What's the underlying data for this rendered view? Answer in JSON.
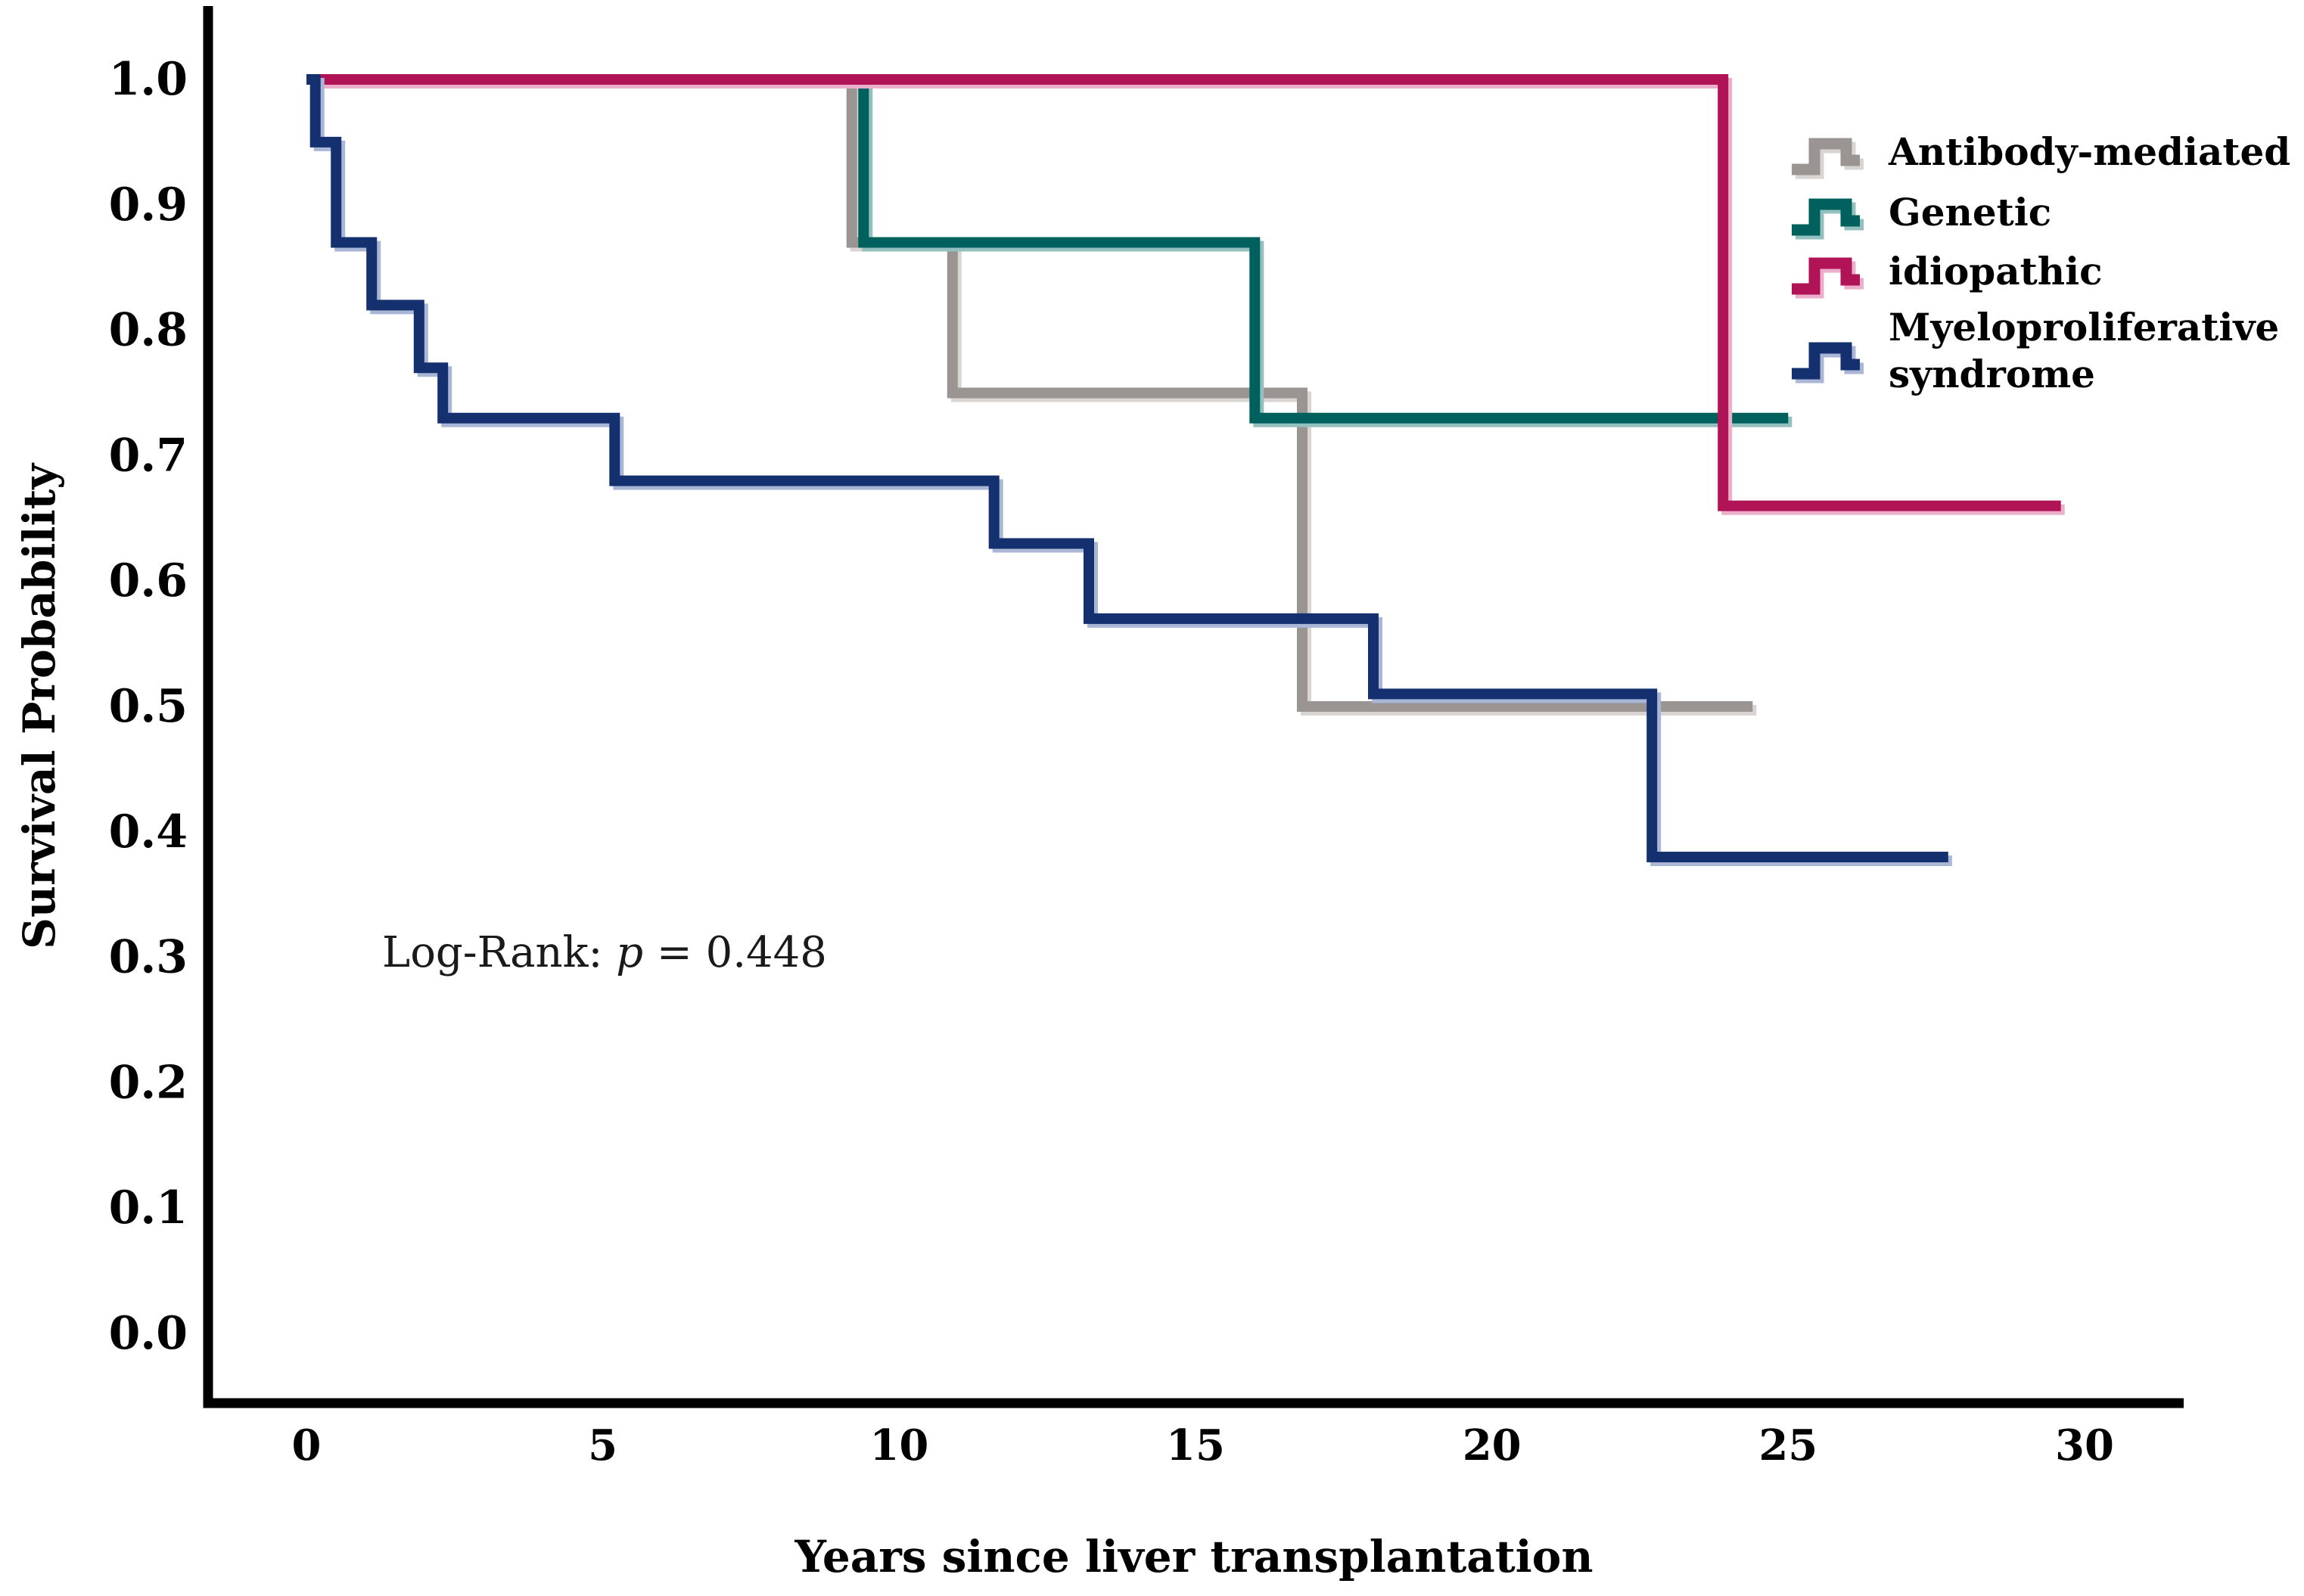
{
  "chart_data": {
    "type": "line",
    "subtype": "kaplan-meier-step",
    "title": "",
    "xlabel": "Years since liver transplantation",
    "ylabel": "Survival Probability",
    "x_ticks": [
      0,
      5,
      10,
      15,
      20,
      25,
      30
    ],
    "y_ticks": [
      "0.0",
      "0.1",
      "0.2",
      "0.3",
      "0.4",
      "0.5",
      "0.6",
      "0.7",
      "0.8",
      "0.9",
      "1.0"
    ],
    "xlim": [
      0,
      31.7
    ],
    "ylim": [
      0.0,
      1.06
    ],
    "grid": false,
    "legend_position": "upper-right-inside",
    "annotation": {
      "text": "Log-Rank: p = 0.448",
      "prefix": "Log-Rank: ",
      "p_symbol": "p",
      "suffix": " = 0.448"
    },
    "series": [
      {
        "name": "Antibody-mediated",
        "color": "#9A9593",
        "halo": "#D8D5D3",
        "points": [
          [
            0,
            1.0
          ],
          [
            9.2,
            1.0
          ],
          [
            9.2,
            0.87
          ],
          [
            10.9,
            0.87
          ],
          [
            10.9,
            0.75
          ],
          [
            16.8,
            0.75
          ],
          [
            16.8,
            0.5
          ],
          [
            24.4,
            0.5
          ]
        ]
      },
      {
        "name": "Genetic",
        "color": "#00605E",
        "halo": "#93C0BE",
        "points": [
          [
            0,
            1.0
          ],
          [
            9.4,
            1.0
          ],
          [
            9.4,
            0.87
          ],
          [
            16.0,
            0.87
          ],
          [
            16.0,
            0.73
          ],
          [
            25.0,
            0.73
          ]
        ]
      },
      {
        "name": "idiopathic",
        "color": "#B01457",
        "halo": "#EBAECB",
        "points": [
          [
            0,
            1.0
          ],
          [
            23.9,
            1.0
          ],
          [
            23.9,
            0.66
          ],
          [
            29.6,
            0.66
          ]
        ]
      },
      {
        "name": "Myeloproliferative syndrome",
        "color": "#14306F",
        "halo": "#A9B6D6",
        "points": [
          [
            0,
            1.0
          ],
          [
            0.15,
            1.0
          ],
          [
            0.15,
            0.95
          ],
          [
            0.5,
            0.95
          ],
          [
            0.5,
            0.87
          ],
          [
            1.1,
            0.87
          ],
          [
            1.1,
            0.82
          ],
          [
            1.9,
            0.82
          ],
          [
            1.9,
            0.77
          ],
          [
            2.3,
            0.77
          ],
          [
            2.3,
            0.73
          ],
          [
            5.2,
            0.73
          ],
          [
            5.2,
            0.68
          ],
          [
            11.6,
            0.68
          ],
          [
            11.6,
            0.63
          ],
          [
            13.2,
            0.63
          ],
          [
            13.2,
            0.57
          ],
          [
            18.0,
            0.57
          ],
          [
            18.0,
            0.51
          ],
          [
            22.7,
            0.51
          ],
          [
            22.7,
            0.38
          ],
          [
            27.7,
            0.38
          ]
        ]
      }
    ],
    "legend": [
      {
        "lines": [
          "Antibody-mediated"
        ],
        "color": "#9A9593",
        "halo": "#D8D5D3"
      },
      {
        "lines": [
          "Genetic"
        ],
        "color": "#00605E",
        "halo": "#93C0BE"
      },
      {
        "lines": [
          "idiopathic"
        ],
        "color": "#B01457",
        "halo": "#EBAECB"
      },
      {
        "lines": [
          "Myeloproliferative",
          "syndrome"
        ],
        "color": "#14306F",
        "halo": "#A9B6D6"
      }
    ]
  }
}
